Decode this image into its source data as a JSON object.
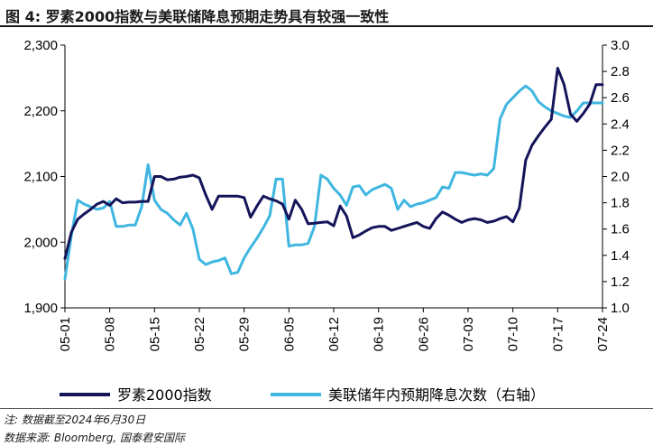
{
  "title": "图 4:  罗素2000指数与美联储降息预期走势具有较强一致性",
  "note": "注:  数据截至2024年6月30日",
  "source": "数据来源: Bloomberg, 国泰君安国际",
  "colors": {
    "primary": "#14145a",
    "secondary": "#3fb6e0",
    "axis": "#000000"
  },
  "chart_data": {
    "type": "line",
    "title": "罗素2000指数与美联储降息预期走势具有较强一致性",
    "x_tick_labels": [
      "05-01",
      "05-08",
      "05-15",
      "05-22",
      "05-29",
      "06-05",
      "06-12",
      "06-19",
      "06-26",
      "07-03",
      "07-10",
      "07-17",
      "07-24"
    ],
    "x_tick_days": [
      0,
      7,
      14,
      21,
      28,
      35,
      42,
      49,
      56,
      63,
      70,
      77,
      84
    ],
    "y_left": {
      "min": 1900,
      "max": 2300,
      "ticks": [
        1900,
        2000,
        2100,
        2200,
        2300
      ],
      "tick_labels": [
        "1,900",
        "2,000",
        "2,100",
        "2,200",
        "2,300"
      ]
    },
    "y_right": {
      "min": 1.0,
      "max": 3.0,
      "ticks": [
        1.0,
        1.2,
        1.4,
        1.6,
        1.8,
        2.0,
        2.2,
        2.4,
        2.6,
        2.8,
        3.0
      ],
      "tick_labels": [
        "1.0",
        "1.2",
        "1.4",
        "1.6",
        "1.8",
        "2.0",
        "2.2",
        "2.4",
        "2.6",
        "2.8",
        "3.0"
      ]
    },
    "legend": [
      "罗素2000指数",
      "美联储年内预期降息次数（右轴）"
    ],
    "series": [
      {
        "name": "罗素2000指数",
        "axis": "left",
        "color": "#14145a",
        "x": [
          0,
          1,
          2,
          3,
          4,
          5,
          6,
          7,
          8,
          9,
          10,
          11,
          12,
          13,
          14,
          15,
          16,
          17,
          18,
          19,
          20,
          21,
          22,
          23,
          24,
          25,
          26,
          27,
          28,
          29,
          30,
          31,
          32,
          33,
          34,
          35,
          36,
          37,
          38,
          39,
          40,
          41,
          42,
          43,
          44,
          45,
          46,
          47,
          48,
          49,
          50,
          51,
          52,
          53,
          54,
          55,
          56,
          57,
          58,
          59,
          60,
          61,
          62,
          63,
          64,
          65,
          66,
          67,
          68,
          69,
          70,
          71,
          72,
          73,
          74,
          75,
          76,
          77,
          78,
          79,
          80,
          81,
          82,
          83,
          84
        ],
        "values": [
          1975,
          2015,
          2035,
          2043,
          2050,
          2058,
          2062,
          2056,
          2066,
          2060,
          2061,
          2061,
          2062,
          2062,
          2100,
          2100,
          2095,
          2096,
          2099,
          2100,
          2102,
          2098,
          2072,
          2050,
          2070,
          2070,
          2070,
          2070,
          2068,
          2038,
          2055,
          2070,
          2066,
          2063,
          2058,
          2035,
          2064,
          2050,
          2028,
          2029,
          2030,
          2031,
          2025,
          2055,
          2040,
          2007,
          2011,
          2017,
          2022,
          2024,
          2024,
          2018,
          2021,
          2024,
          2027,
          2030,
          2024,
          2021,
          2036,
          2046,
          2041,
          2035,
          2030,
          2034,
          2036,
          2034,
          2030,
          2032,
          2036,
          2039,
          2031,
          2052,
          2125,
          2148,
          2162,
          2175,
          2187,
          2265,
          2240,
          2195,
          2184,
          2196,
          2210,
          2240,
          2240
        ]
      },
      {
        "name": "美联储年内预期降息次数（右轴）",
        "axis": "right",
        "color": "#3fb6e0",
        "x": [
          0,
          1,
          2,
          3,
          4,
          5,
          6,
          7,
          8,
          9,
          10,
          11,
          12,
          13,
          14,
          15,
          16,
          17,
          18,
          19,
          20,
          21,
          22,
          23,
          24,
          25,
          26,
          27,
          28,
          29,
          30,
          31,
          32,
          33,
          34,
          35,
          36,
          37,
          38,
          39,
          40,
          41,
          42,
          43,
          44,
          45,
          46,
          47,
          48,
          49,
          50,
          51,
          52,
          53,
          54,
          55,
          56,
          57,
          58,
          59,
          60,
          61,
          62,
          63,
          64,
          65,
          66,
          67,
          68,
          69,
          70,
          71,
          72,
          73,
          74,
          75,
          76,
          77,
          78,
          79,
          80,
          81,
          82,
          83,
          84
        ],
        "values": [
          1.22,
          1.55,
          1.82,
          1.79,
          1.77,
          1.75,
          1.76,
          1.81,
          1.62,
          1.62,
          1.63,
          1.63,
          1.77,
          2.09,
          1.82,
          1.75,
          1.72,
          1.67,
          1.63,
          1.72,
          1.6,
          1.37,
          1.33,
          1.35,
          1.36,
          1.38,
          1.26,
          1.27,
          1.38,
          1.46,
          1.53,
          1.61,
          1.7,
          1.98,
          1.98,
          1.47,
          1.48,
          1.48,
          1.49,
          1.62,
          2.01,
          1.98,
          1.91,
          1.86,
          1.78,
          1.92,
          1.93,
          1.86,
          1.9,
          1.92,
          1.94,
          1.91,
          1.75,
          1.82,
          1.77,
          1.79,
          1.8,
          1.82,
          1.84,
          1.92,
          1.91,
          2.03,
          2.03,
          2.02,
          2.01,
          2.02,
          2.01,
          2.06,
          2.44,
          2.55,
          2.6,
          2.65,
          2.69,
          2.65,
          2.57,
          2.53,
          2.5,
          2.48,
          2.46,
          2.45,
          2.5,
          2.56,
          2.56,
          2.56,
          2.56
        ]
      }
    ]
  }
}
